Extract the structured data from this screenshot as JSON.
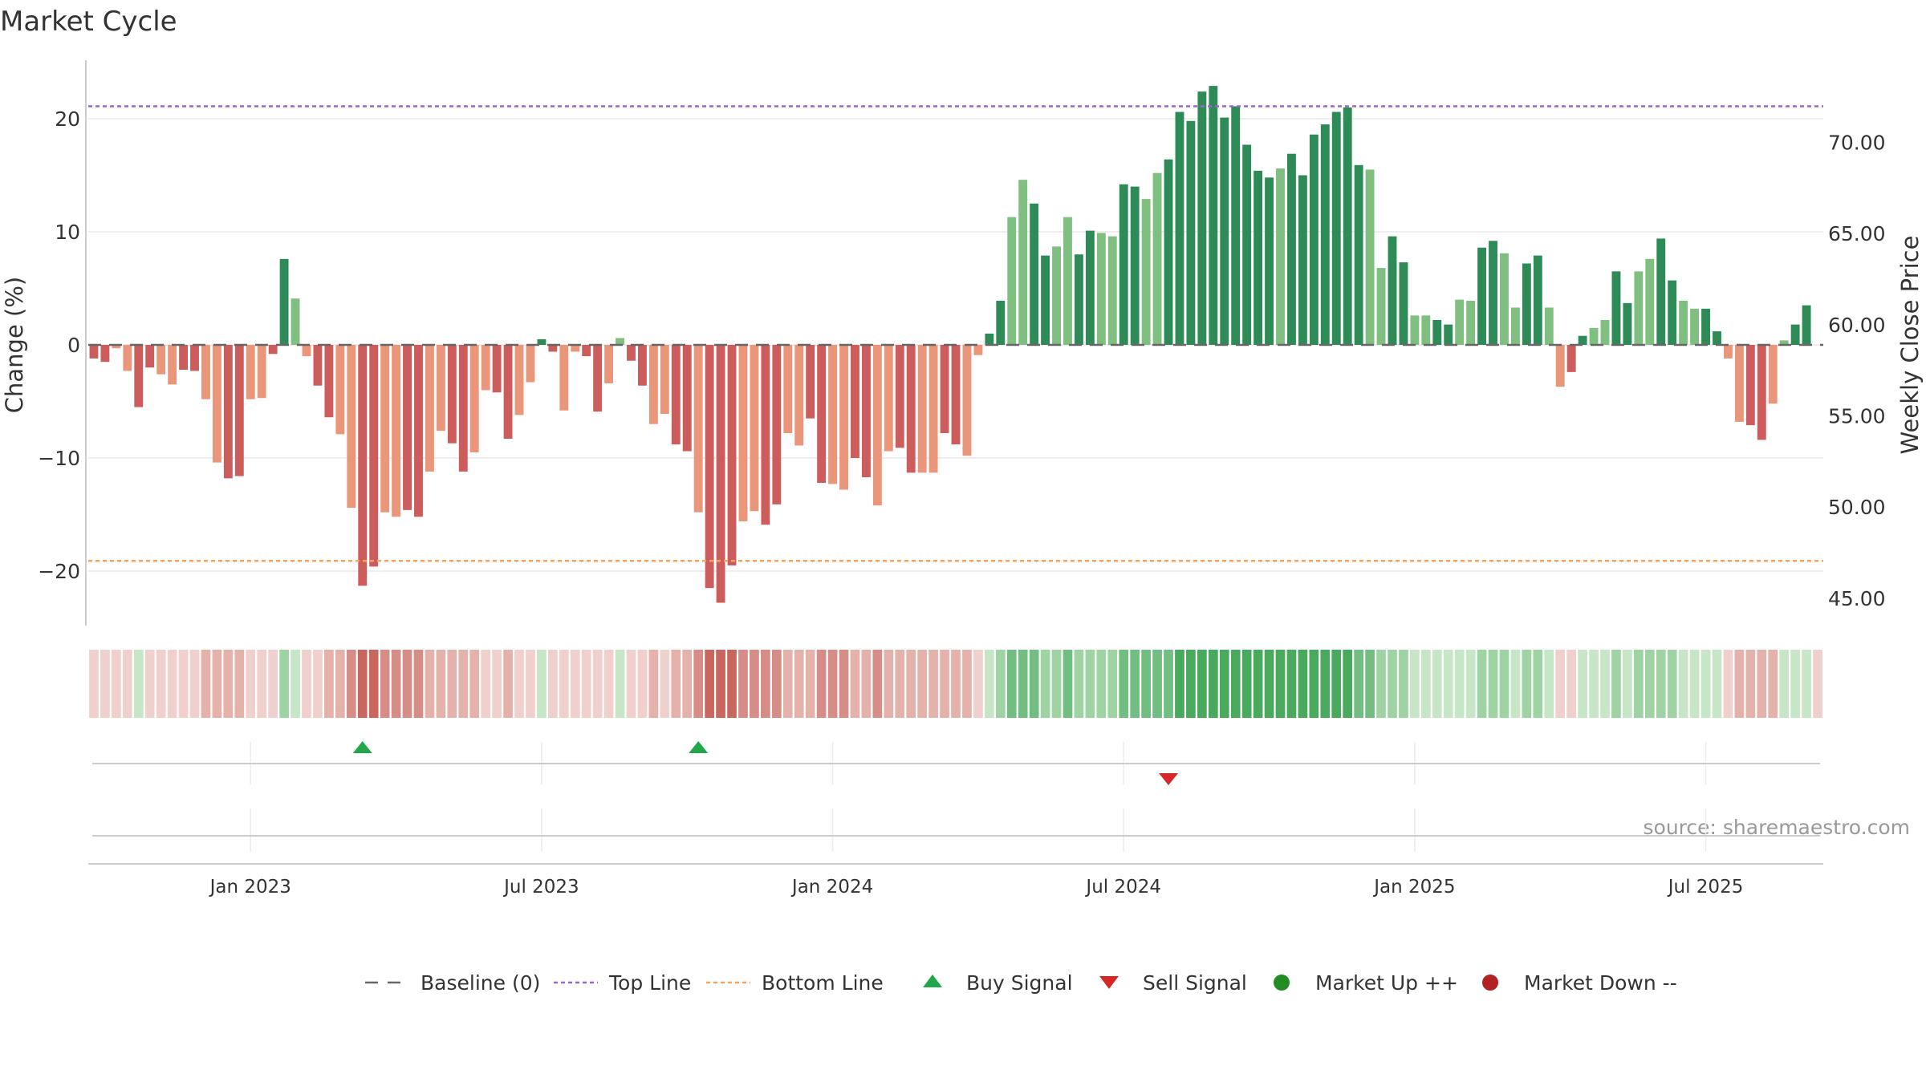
{
  "chart_data": {
    "type": "bar",
    "title": "Market Cycle",
    "ylabel": "Change (%)",
    "y2label": "Weekly Close Price",
    "source": "source: sharemaestro.com",
    "ylim": [
      -25,
      25
    ],
    "y2lim": [
      43.5,
      74.5
    ],
    "yticks": [
      {
        "value": 20,
        "label": "20"
      },
      {
        "value": 10,
        "label": "10"
      },
      {
        "value": 0,
        "label": "0"
      },
      {
        "value": -10,
        "label": "−10"
      },
      {
        "value": -20,
        "label": "−20"
      }
    ],
    "y2ticks": [
      {
        "value": 70,
        "label": "70.00"
      },
      {
        "value": 65,
        "label": "65.00"
      },
      {
        "value": 60,
        "label": "60.00"
      },
      {
        "value": 55,
        "label": "55.00"
      },
      {
        "value": 50,
        "label": "50.00"
      },
      {
        "value": 45,
        "label": "45.00"
      }
    ],
    "xticks": [
      {
        "index": 14.5,
        "label": "Jan 2023"
      },
      {
        "index": 40.5,
        "label": "Jul 2023"
      },
      {
        "index": 66.5,
        "label": "Jan 2024"
      },
      {
        "index": 92.5,
        "label": "Jul 2024"
      },
      {
        "index": 118.5,
        "label": "Jan 2025"
      },
      {
        "index": 144.5,
        "label": "Jul 2025"
      }
    ],
    "top_line": 21.1,
    "bottom_line": -19.1,
    "values": [
      -1.2,
      -1.5,
      -0.3,
      -2.3,
      -5.5,
      -2.0,
      -2.6,
      -3.5,
      -2.2,
      -2.3,
      -4.8,
      -10.4,
      -11.8,
      -11.6,
      -4.8,
      -4.7,
      -0.8,
      7.6,
      4.1,
      -1.0,
      -3.6,
      -6.4,
      -7.9,
      -14.4,
      -21.3,
      -19.6,
      -14.8,
      -15.2,
      -14.6,
      -15.2,
      -11.2,
      -7.6,
      -8.7,
      -11.2,
      -9.5,
      -4.0,
      -4.2,
      -8.3,
      -6.2,
      -3.3,
      0.5,
      -0.6,
      -5.8,
      -0.6,
      -1.0,
      -5.9,
      -3.4,
      0.6,
      -1.4,
      -3.6,
      -7.0,
      -6.1,
      -8.8,
      -9.4,
      -14.8,
      -21.5,
      -22.8,
      -19.5,
      -15.6,
      -14.7,
      -15.9,
      -14.1,
      -7.8,
      -8.9,
      -6.5,
      -12.2,
      -12.3,
      -12.8,
      -10.0,
      -11.7,
      -14.2,
      -9.4,
      -9.1,
      -11.3,
      -11.3,
      -11.3,
      -7.8,
      -8.8,
      -9.8,
      -0.9,
      1.0,
      3.9,
      11.3,
      14.6,
      12.5,
      7.9,
      8.7,
      11.3,
      8.0,
      10.1,
      9.9,
      9.6,
      14.2,
      14.0,
      12.9,
      15.2,
      16.4,
      20.6,
      19.8,
      22.4,
      22.9,
      20.1,
      21.1,
      17.7,
      15.4,
      14.8,
      15.6,
      16.9,
      15.0,
      18.6,
      19.5,
      20.6,
      21.0,
      15.9,
      15.5,
      6.8,
      9.6,
      7.3,
      2.6,
      2.6,
      2.2,
      1.8,
      4.0,
      3.9,
      8.6,
      9.2,
      8.1,
      3.3,
      7.2,
      7.9,
      3.3,
      -3.7,
      -2.4,
      0.8,
      1.5,
      2.2,
      6.5,
      3.7,
      6.5,
      7.6,
      9.4,
      5.7,
      3.9,
      3.2,
      3.2,
      1.2,
      -1.2,
      -6.8,
      -7.1,
      -8.4,
      -5.2,
      0.4,
      1.8,
      3.5,
      0.0
    ],
    "intensity_strip": [
      -1,
      -1,
      -1,
      -1,
      1,
      -1,
      -1,
      -1,
      -1,
      -1,
      -2,
      -2,
      -2,
      -2,
      -1,
      -1,
      -1,
      2,
      1,
      -1,
      -1,
      -2,
      -2,
      -3,
      -4,
      -4,
      -3,
      -3,
      -3,
      -3,
      -2,
      -2,
      -2,
      -2,
      -2,
      -1,
      -1,
      -2,
      -1,
      -1,
      1,
      -1,
      -1,
      -1,
      -1,
      -1,
      -1,
      1,
      -1,
      -1,
      -2,
      -1,
      -2,
      -2,
      -3,
      -4,
      -4,
      -4,
      -3,
      -3,
      -3,
      -3,
      -2,
      -2,
      -2,
      -3,
      -3,
      -3,
      -2,
      -2,
      -3,
      -2,
      -2,
      -2,
      -2,
      -2,
      -2,
      -2,
      -2,
      -1,
      1,
      2,
      3,
      3,
      3,
      2,
      2,
      3,
      2,
      2,
      2,
      2,
      3,
      3,
      3,
      3,
      3,
      4,
      4,
      4,
      4,
      4,
      4,
      4,
      4,
      4,
      4,
      4,
      4,
      4,
      4,
      4,
      4,
      3,
      3,
      2,
      2,
      2,
      1,
      1,
      1,
      1,
      1,
      1,
      2,
      2,
      2,
      1,
      2,
      2,
      1,
      -1,
      -1,
      1,
      1,
      1,
      2,
      1,
      2,
      2,
      2,
      2,
      1,
      1,
      1,
      1,
      -1,
      -2,
      -2,
      -2,
      -2,
      1,
      1,
      1,
      -1
    ],
    "signals": [
      {
        "type": "buy",
        "index": 24.5
      },
      {
        "type": "buy",
        "index": 54.5
      },
      {
        "type": "sell",
        "index": 96.5
      }
    ],
    "legend": [
      {
        "key": "baseline",
        "label": "Baseline (0)"
      },
      {
        "key": "topline",
        "label": "Top Line"
      },
      {
        "key": "bottomline",
        "label": "Bottom Line"
      },
      {
        "key": "buy",
        "label": "Buy Signal"
      },
      {
        "key": "sell",
        "label": "Sell Signal"
      },
      {
        "key": "up",
        "label": "Market Up ++"
      },
      {
        "key": "down",
        "label": "Market Down --"
      }
    ],
    "grid": true,
    "legend_position": "bottom-center"
  },
  "colors": {
    "up_dark": "#2e8b57",
    "up_light": "#7fbf7f",
    "down_dark": "#cd5c5c",
    "down_light": "#e9967a",
    "topline": "#9966cc",
    "bottomline": "#f4a460",
    "buy": "#22a84a",
    "sell": "#d62728",
    "market_up": "#228b22",
    "market_down": "#b22222",
    "baseline": "#666666"
  }
}
